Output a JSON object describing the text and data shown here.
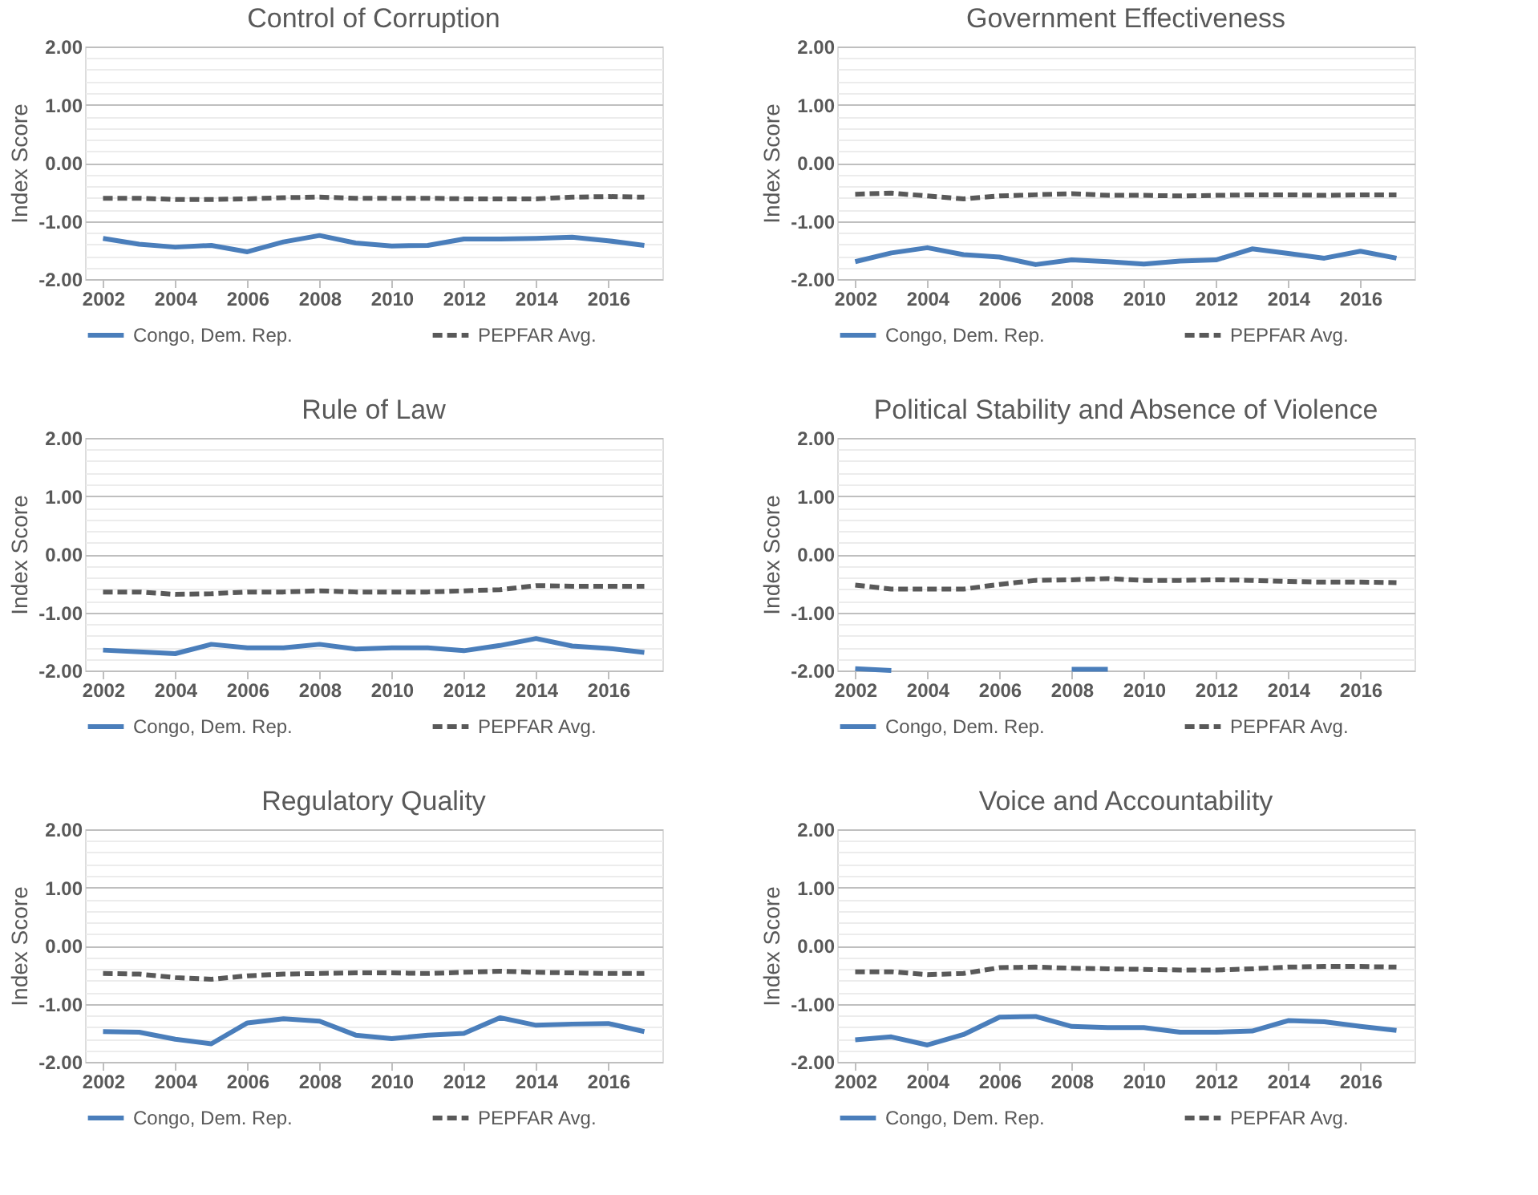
{
  "chart_data": [
    {
      "type": "line",
      "title": "Control of Corruption",
      "ylabel": "Index Score",
      "x": [
        2002,
        2003,
        2004,
        2005,
        2006,
        2007,
        2008,
        2009,
        2010,
        2011,
        2012,
        2013,
        2014,
        2015,
        2016,
        2017
      ],
      "xlim": [
        2001.5,
        2017.5
      ],
      "xticks": [
        2002,
        2004,
        2006,
        2008,
        2010,
        2012,
        2014,
        2016
      ],
      "ylim": [
        -2,
        2
      ],
      "yticks": [
        {
          "value": -2,
          "label": "-2.00"
        },
        {
          "value": -1.8,
          "label": null
        },
        {
          "value": -1.6,
          "label": null
        },
        {
          "value": -1.4,
          "label": null
        },
        {
          "value": -1.2,
          "label": null
        },
        {
          "value": -1,
          "label": "-1.00"
        },
        {
          "value": -0.8,
          "label": null
        },
        {
          "value": -0.6,
          "label": null
        },
        {
          "value": -0.4,
          "label": null
        },
        {
          "value": -0.2,
          "label": null
        },
        {
          "value": 0,
          "label": "0.00"
        },
        {
          "value": 0.2,
          "label": null
        },
        {
          "value": 0.4,
          "label": null
        },
        {
          "value": 0.6,
          "label": null
        },
        {
          "value": 0.8,
          "label": null
        },
        {
          "value": 1,
          "label": "1.00"
        },
        {
          "value": 1.2,
          "label": null
        },
        {
          "value": 1.4,
          "label": null
        },
        {
          "value": 1.6,
          "label": null
        },
        {
          "value": 1.8,
          "label": null
        },
        {
          "value": 2,
          "label": "2.00"
        }
      ],
      "grid": "y",
      "legend": "bottom",
      "series": [
        {
          "name": "Congo, Dem. Rep.",
          "color": "#4a7ebb",
          "line_style": "solid",
          "values": [
            -1.3,
            -1.4,
            -1.45,
            -1.42,
            -1.53,
            -1.36,
            -1.25,
            -1.38,
            -1.43,
            -1.42,
            -1.31,
            -1.31,
            -1.3,
            -1.28,
            -1.34,
            -1.42
          ]
        },
        {
          "name": "PEPFAR Avg.",
          "color": "#595959",
          "line_style": "dashed",
          "values": [
            -0.61,
            -0.61,
            -0.63,
            -0.63,
            -0.62,
            -0.6,
            -0.59,
            -0.61,
            -0.61,
            -0.61,
            -0.62,
            -0.62,
            -0.62,
            -0.59,
            -0.58,
            -0.59
          ]
        }
      ]
    },
    {
      "type": "line",
      "title": "Government Effectiveness",
      "ylabel": "Index Score",
      "x": [
        2002,
        2003,
        2004,
        2005,
        2006,
        2007,
        2008,
        2009,
        2010,
        2011,
        2012,
        2013,
        2014,
        2015,
        2016,
        2017
      ],
      "xlim": [
        2001.5,
        2017.5
      ],
      "xticks": [
        2002,
        2004,
        2006,
        2008,
        2010,
        2012,
        2014,
        2016
      ],
      "ylim": [
        -2,
        2
      ],
      "yticks": [
        {
          "value": -2,
          "label": "-2.00"
        },
        {
          "value": -1.8,
          "label": null
        },
        {
          "value": -1.6,
          "label": null
        },
        {
          "value": -1.4,
          "label": null
        },
        {
          "value": -1.2,
          "label": null
        },
        {
          "value": -1,
          "label": "-1.00"
        },
        {
          "value": -0.8,
          "label": null
        },
        {
          "value": -0.6,
          "label": null
        },
        {
          "value": -0.4,
          "label": null
        },
        {
          "value": -0.2,
          "label": null
        },
        {
          "value": 0,
          "label": "0.00"
        },
        {
          "value": 0.2,
          "label": null
        },
        {
          "value": 0.4,
          "label": null
        },
        {
          "value": 0.6,
          "label": null
        },
        {
          "value": 0.8,
          "label": null
        },
        {
          "value": 1,
          "label": "1.00"
        },
        {
          "value": 1.2,
          "label": null
        },
        {
          "value": 1.4,
          "label": null
        },
        {
          "value": 1.6,
          "label": null
        },
        {
          "value": 1.8,
          "label": null
        },
        {
          "value": 2,
          "label": "2.00"
        }
      ],
      "grid": "y",
      "legend": "bottom",
      "series": [
        {
          "name": "Congo, Dem. Rep.",
          "color": "#4a7ebb",
          "line_style": "solid",
          "values": [
            -1.7,
            -1.55,
            -1.46,
            -1.58,
            -1.62,
            -1.75,
            -1.67,
            -1.7,
            -1.74,
            -1.69,
            -1.67,
            -1.48,
            -1.56,
            -1.64,
            -1.52,
            -1.64
          ]
        },
        {
          "name": "PEPFAR Avg.",
          "color": "#595959",
          "line_style": "dashed",
          "values": [
            -0.54,
            -0.52,
            -0.57,
            -0.62,
            -0.57,
            -0.55,
            -0.53,
            -0.56,
            -0.56,
            -0.57,
            -0.56,
            -0.55,
            -0.55,
            -0.56,
            -0.55,
            -0.55
          ]
        }
      ]
    },
    {
      "type": "line",
      "title": "Rule of Law",
      "ylabel": "Index Score",
      "x": [
        2002,
        2003,
        2004,
        2005,
        2006,
        2007,
        2008,
        2009,
        2010,
        2011,
        2012,
        2013,
        2014,
        2015,
        2016,
        2017
      ],
      "xlim": [
        2001.5,
        2017.5
      ],
      "xticks": [
        2002,
        2004,
        2006,
        2008,
        2010,
        2012,
        2014,
        2016
      ],
      "ylim": [
        -2,
        2
      ],
      "yticks": [
        {
          "value": -2,
          "label": "-2.00"
        },
        {
          "value": -1.8,
          "label": null
        },
        {
          "value": -1.6,
          "label": null
        },
        {
          "value": -1.4,
          "label": null
        },
        {
          "value": -1.2,
          "label": null
        },
        {
          "value": -1,
          "label": "-1.00"
        },
        {
          "value": -0.8,
          "label": null
        },
        {
          "value": -0.6,
          "label": null
        },
        {
          "value": -0.4,
          "label": null
        },
        {
          "value": -0.2,
          "label": null
        },
        {
          "value": 0,
          "label": "0.00"
        },
        {
          "value": 0.2,
          "label": null
        },
        {
          "value": 0.4,
          "label": null
        },
        {
          "value": 0.6,
          "label": null
        },
        {
          "value": 0.8,
          "label": null
        },
        {
          "value": 1,
          "label": "1.00"
        },
        {
          "value": 1.2,
          "label": null
        },
        {
          "value": 1.4,
          "label": null
        },
        {
          "value": 1.6,
          "label": null
        },
        {
          "value": 1.8,
          "label": null
        },
        {
          "value": 2,
          "label": "2.00"
        }
      ],
      "grid": "y",
      "legend": "bottom",
      "series": [
        {
          "name": "Congo, Dem. Rep.",
          "color": "#4a7ebb",
          "line_style": "solid",
          "values": [
            -1.65,
            -1.68,
            -1.71,
            -1.55,
            -1.61,
            -1.61,
            -1.55,
            -1.63,
            -1.61,
            -1.61,
            -1.66,
            -1.57,
            -1.45,
            -1.58,
            -1.62,
            -1.69
          ]
        },
        {
          "name": "PEPFAR Avg.",
          "color": "#595959",
          "line_style": "dashed",
          "values": [
            -0.65,
            -0.65,
            -0.69,
            -0.68,
            -0.65,
            -0.65,
            -0.63,
            -0.65,
            -0.65,
            -0.65,
            -0.63,
            -0.61,
            -0.54,
            -0.55,
            -0.55,
            -0.55
          ]
        }
      ]
    },
    {
      "type": "line",
      "title": "Political Stability and Absence of Violence",
      "ylabel": "Index Score",
      "x": [
        2002,
        2003,
        2004,
        2005,
        2006,
        2007,
        2008,
        2009,
        2010,
        2011,
        2012,
        2013,
        2014,
        2015,
        2016,
        2017
      ],
      "xlim": [
        2001.5,
        2017.5
      ],
      "xticks": [
        2002,
        2004,
        2006,
        2008,
        2010,
        2012,
        2014,
        2016
      ],
      "ylim": [
        -2,
        2
      ],
      "yticks": [
        {
          "value": -2,
          "label": "-2.00"
        },
        {
          "value": -1.8,
          "label": null
        },
        {
          "value": -1.6,
          "label": null
        },
        {
          "value": -1.4,
          "label": null
        },
        {
          "value": -1.2,
          "label": null
        },
        {
          "value": -1,
          "label": "-1.00"
        },
        {
          "value": -0.8,
          "label": null
        },
        {
          "value": -0.6,
          "label": null
        },
        {
          "value": -0.4,
          "label": null
        },
        {
          "value": -0.2,
          "label": null
        },
        {
          "value": 0,
          "label": "0.00"
        },
        {
          "value": 0.2,
          "label": null
        },
        {
          "value": 0.4,
          "label": null
        },
        {
          "value": 0.6,
          "label": null
        },
        {
          "value": 0.8,
          "label": null
        },
        {
          "value": 1,
          "label": "1.00"
        },
        {
          "value": 1.2,
          "label": null
        },
        {
          "value": 1.4,
          "label": null
        },
        {
          "value": 1.6,
          "label": null
        },
        {
          "value": 1.8,
          "label": null
        },
        {
          "value": 2,
          "label": "2.00"
        }
      ],
      "grid": "y",
      "legend": "bottom",
      "series": [
        {
          "name": "Congo, Dem. Rep.",
          "color": "#4a7ebb",
          "line_style": "solid",
          "values": [
            -1.97,
            -2.0,
            null,
            null,
            null,
            null,
            -1.98,
            -1.98,
            null,
            null,
            null,
            null,
            null,
            null,
            null,
            null
          ]
        },
        {
          "name": "PEPFAR Avg.",
          "color": "#595959",
          "line_style": "dashed",
          "values": [
            -0.53,
            -0.6,
            -0.6,
            -0.6,
            -0.52,
            -0.45,
            -0.44,
            -0.42,
            -0.45,
            -0.45,
            -0.44,
            -0.45,
            -0.47,
            -0.48,
            -0.48,
            -0.49
          ]
        }
      ]
    },
    {
      "type": "line",
      "title": "Regulatory Quality",
      "ylabel": "Index Score",
      "x": [
        2002,
        2003,
        2004,
        2005,
        2006,
        2007,
        2008,
        2009,
        2010,
        2011,
        2012,
        2013,
        2014,
        2015,
        2016,
        2017
      ],
      "xlim": [
        2001.5,
        2017.5
      ],
      "xticks": [
        2002,
        2004,
        2006,
        2008,
        2010,
        2012,
        2014,
        2016
      ],
      "ylim": [
        -2,
        2
      ],
      "yticks": [
        {
          "value": -2,
          "label": "-2.00"
        },
        {
          "value": -1.8,
          "label": null
        },
        {
          "value": -1.6,
          "label": null
        },
        {
          "value": -1.4,
          "label": null
        },
        {
          "value": -1.2,
          "label": null
        },
        {
          "value": -1,
          "label": "-1.00"
        },
        {
          "value": -0.8,
          "label": null
        },
        {
          "value": -0.6,
          "label": null
        },
        {
          "value": -0.4,
          "label": null
        },
        {
          "value": -0.2,
          "label": null
        },
        {
          "value": 0,
          "label": "0.00"
        },
        {
          "value": 0.2,
          "label": null
        },
        {
          "value": 0.4,
          "label": null
        },
        {
          "value": 0.6,
          "label": null
        },
        {
          "value": 0.8,
          "label": null
        },
        {
          "value": 1,
          "label": "1.00"
        },
        {
          "value": 1.2,
          "label": null
        },
        {
          "value": 1.4,
          "label": null
        },
        {
          "value": 1.6,
          "label": null
        },
        {
          "value": 1.8,
          "label": null
        },
        {
          "value": 2,
          "label": "2.00"
        }
      ],
      "grid": "y",
      "legend": "bottom",
      "series": [
        {
          "name": "Congo, Dem. Rep.",
          "color": "#4a7ebb",
          "line_style": "solid",
          "values": [
            -1.48,
            -1.49,
            -1.61,
            -1.69,
            -1.33,
            -1.26,
            -1.3,
            -1.54,
            -1.6,
            -1.54,
            -1.51,
            -1.24,
            -1.37,
            -1.35,
            -1.34,
            -1.48
          ]
        },
        {
          "name": "PEPFAR Avg.",
          "color": "#595959",
          "line_style": "dashed",
          "values": [
            -0.48,
            -0.49,
            -0.55,
            -0.58,
            -0.52,
            -0.49,
            -0.48,
            -0.47,
            -0.47,
            -0.48,
            -0.46,
            -0.44,
            -0.46,
            -0.47,
            -0.48,
            -0.48
          ]
        }
      ]
    },
    {
      "type": "line",
      "title": "Voice and Accountability",
      "ylabel": "Index Score",
      "x": [
        2002,
        2003,
        2004,
        2005,
        2006,
        2007,
        2008,
        2009,
        2010,
        2011,
        2012,
        2013,
        2014,
        2015,
        2016,
        2017
      ],
      "xlim": [
        2001.5,
        2017.5
      ],
      "xticks": [
        2002,
        2004,
        2006,
        2008,
        2010,
        2012,
        2014,
        2016
      ],
      "ylim": [
        -2,
        2
      ],
      "yticks": [
        {
          "value": -2,
          "label": "-2.00"
        },
        {
          "value": -1.8,
          "label": null
        },
        {
          "value": -1.6,
          "label": null
        },
        {
          "value": -1.4,
          "label": null
        },
        {
          "value": -1.2,
          "label": null
        },
        {
          "value": -1,
          "label": "-1.00"
        },
        {
          "value": -0.8,
          "label": null
        },
        {
          "value": -0.6,
          "label": null
        },
        {
          "value": -0.4,
          "label": null
        },
        {
          "value": -0.2,
          "label": null
        },
        {
          "value": 0,
          "label": "0.00"
        },
        {
          "value": 0.2,
          "label": null
        },
        {
          "value": 0.4,
          "label": null
        },
        {
          "value": 0.6,
          "label": null
        },
        {
          "value": 0.8,
          "label": null
        },
        {
          "value": 1,
          "label": "1.00"
        },
        {
          "value": 1.2,
          "label": null
        },
        {
          "value": 1.4,
          "label": null
        },
        {
          "value": 1.6,
          "label": null
        },
        {
          "value": 1.8,
          "label": null
        },
        {
          "value": 2,
          "label": "2.00"
        }
      ],
      "grid": "y",
      "legend": "bottom",
      "series": [
        {
          "name": "Congo, Dem. Rep.",
          "color": "#4a7ebb",
          "line_style": "solid",
          "values": [
            -1.62,
            -1.57,
            -1.71,
            -1.53,
            -1.23,
            -1.22,
            -1.39,
            -1.41,
            -1.41,
            -1.49,
            -1.49,
            -1.47,
            -1.29,
            -1.31,
            -1.39,
            -1.46
          ]
        },
        {
          "name": "PEPFAR Avg.",
          "color": "#595959",
          "line_style": "dashed",
          "values": [
            -0.45,
            -0.45,
            -0.5,
            -0.48,
            -0.38,
            -0.37,
            -0.39,
            -0.4,
            -0.41,
            -0.42,
            -0.42,
            -0.4,
            -0.37,
            -0.36,
            -0.36,
            -0.37
          ]
        }
      ]
    }
  ]
}
